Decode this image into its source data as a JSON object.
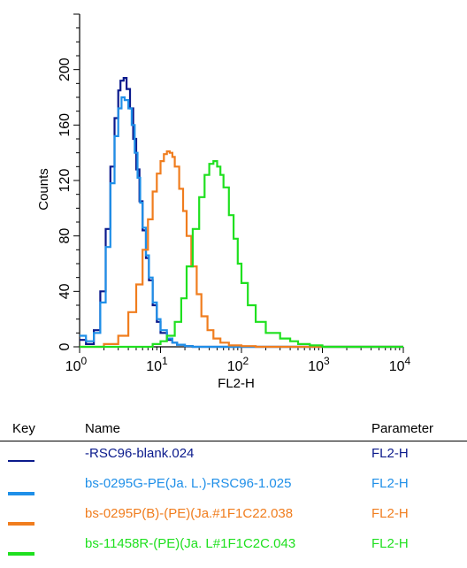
{
  "chart_data": {
    "type": "line",
    "xlabel": "FL2-H",
    "ylabel": "Counts",
    "x_scale": "log",
    "xlim": [
      1,
      10000
    ],
    "ylim": [
      0,
      240
    ],
    "x_ticks": [
      {
        "base": "10",
        "exp": "0"
      },
      {
        "base": "10",
        "exp": "1"
      },
      {
        "base": "10",
        "exp": "2"
      },
      {
        "base": "10",
        "exp": "3"
      },
      {
        "base": "10",
        "exp": "4"
      }
    ],
    "y_ticks": [
      "0",
      "40",
      "80",
      "120",
      "160",
      "200"
    ],
    "series": [
      {
        "name": "-RSC96-blank.024",
        "color": "#0a1a8c",
        "x": [
          1,
          1.2,
          1.5,
          1.8,
          2.1,
          2.4,
          2.7,
          3.0,
          3.2,
          3.5,
          3.8,
          4.2,
          4.6,
          5.0,
          5.5,
          6.0,
          6.6,
          7.2,
          8.0,
          9.0,
          10.0,
          12.0,
          14.0,
          16.0,
          20.0,
          25.0,
          40.0,
          100.0,
          10000.0
        ],
        "y": [
          5,
          2,
          12,
          40,
          85,
          130,
          165,
          185,
          192,
          194,
          186,
          172,
          150,
          128,
          105,
          84,
          64,
          48,
          30,
          18,
          10,
          5,
          3,
          1.5,
          0.5,
          0,
          0,
          0,
          0
        ]
      },
      {
        "name": "bs-0295G-PE(Ja. L.)-RSC96-1.025",
        "color": "#1f8fe8",
        "x": [
          1,
          1.2,
          1.5,
          1.8,
          2.1,
          2.4,
          2.7,
          3.0,
          3.3,
          3.6,
          4.0,
          4.4,
          4.8,
          5.2,
          5.6,
          6.0,
          6.6,
          7.2,
          8.0,
          9.0,
          10.0,
          12.0,
          14.0,
          16.0,
          20.0,
          25.0,
          40.0,
          100.0,
          10000.0
        ],
        "y": [
          8,
          4,
          10,
          32,
          72,
          118,
          152,
          172,
          180,
          178,
          172,
          160,
          140,
          122,
          104,
          86,
          66,
          50,
          32,
          20,
          12,
          6,
          3,
          1.5,
          0.5,
          0,
          0,
          0,
          0
        ]
      },
      {
        "name": "bs-0295P(B)-(PE)(Ja.#1F1C22.038",
        "color": "#f07d1e",
        "x": [
          1,
          2,
          3,
          4,
          5,
          6,
          7,
          8,
          9,
          10,
          11,
          12,
          13,
          14,
          15,
          17,
          19,
          21,
          24,
          28,
          32,
          38,
          45,
          55,
          70,
          100,
          150,
          10000
        ],
        "y": [
          0,
          2,
          8,
          25,
          45,
          70,
          92,
          112,
          125,
          134,
          139,
          141,
          140,
          137,
          130,
          114,
          98,
          80,
          58,
          38,
          22,
          12,
          6,
          3,
          1,
          0.5,
          0,
          0
        ]
      },
      {
        "name": "bs-11458R-(PE)(Ja. L#1F1C2C.043",
        "color": "#1fe01f",
        "x": [
          1,
          5,
          8,
          10,
          12,
          15,
          18,
          21,
          25,
          30,
          35,
          40,
          45,
          50,
          55,
          60,
          70,
          80,
          90,
          100,
          120,
          150,
          200,
          300,
          400,
          500,
          700,
          1000,
          10000
        ],
        "y": [
          0,
          0,
          2,
          4,
          8,
          18,
          35,
          58,
          85,
          108,
          124,
          132,
          134,
          130,
          124,
          115,
          95,
          78,
          60,
          46,
          30,
          18,
          10,
          6,
          4,
          2,
          1,
          0,
          0
        ]
      }
    ]
  },
  "key": {
    "headers": {
      "key": "Key",
      "name": "Name",
      "parameter": "Parameter"
    },
    "rows": [
      {
        "name": "-RSC96-blank.024",
        "parameter": "FL2-H",
        "color": "#0a1a8c"
      },
      {
        "name": "bs-0295G-PE(Ja. L.)-RSC96-1.025",
        "parameter": "FL2-H",
        "color": "#1f8fe8"
      },
      {
        "name": "bs-0295P(B)-(PE)(Ja.#1F1C22.038",
        "parameter": "FL2-H",
        "color": "#f07d1e"
      },
      {
        "name": "bs-11458R-(PE)(Ja. L#1F1C2C.043",
        "parameter": "FL2-H",
        "color": "#1fe01f"
      }
    ]
  }
}
